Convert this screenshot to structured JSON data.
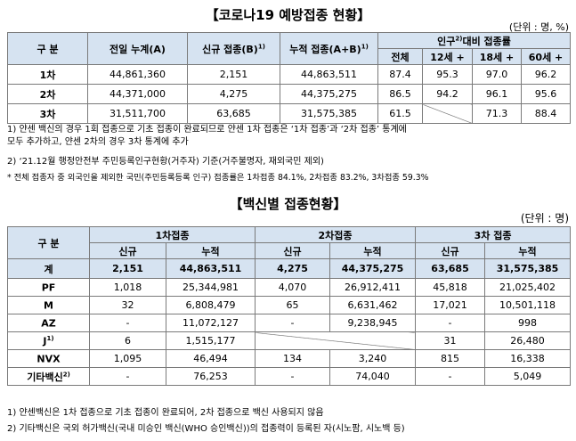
{
  "table1": {
    "title": "【코로나19 예방접종 현황】",
    "unit": "(단위 : 명, %)",
    "headers": {
      "category": "구 분",
      "prev": "전일 누계(A)",
      "new": "신규 접종(B)",
      "new_sup": "1)",
      "cum": "누적 접종(A+B)",
      "cum_sup": "1)",
      "pop_group": "인구",
      "pop_group_sup": "2)",
      "pop_group_tail": "대비 접종률",
      "total": "전체",
      "age12": "12세 +",
      "age18": "18세 +",
      "age60": "60세 +"
    },
    "rows": [
      {
        "label": "1차",
        "prev": "44,861,360",
        "new": "2,151",
        "cum": "44,863,511",
        "total": "87.4",
        "age12": "95.3",
        "age18": "97.0",
        "age60": "96.2"
      },
      {
        "label": "2차",
        "prev": "44,371,000",
        "new": "4,275",
        "cum": "44,375,275",
        "total": "86.5",
        "age12": "94.2",
        "age18": "96.1",
        "age60": "95.6"
      },
      {
        "label": "3차",
        "prev": "31,511,700",
        "new": "63,685",
        "cum": "31,575,385",
        "total": "61.5",
        "age12": "",
        "age18": "71.3",
        "age60": "88.4"
      }
    ],
    "notes": [
      "1) 얀센 백신의 경우 1회 접종으로 기초 접종이 완료되므로 얀센 1차 접종은 ‘1차 접종’과 ‘2차 접종’ 통계에",
      "    모두 추가하고, 얀센 2차의 경우 3차 통계에 추가",
      "2) ‘21.12월 행정안전부 주민등록인구현황(거주자) 기준(거주불명자, 재외국민 제외)",
      "  * 전체 접종자 중 외국인을 제외한 국민(주민등록등록 인구) 접종률은 1차접종 84.1%, 2차접종 83.2%, 3차접종 59.3%"
    ]
  },
  "table2": {
    "title": "【백신별 접종현황】",
    "unit": "(단위 : 명)",
    "headers": {
      "category": "구 분",
      "dose1": "1차접종",
      "dose2": "2차접종",
      "dose3": "3차 접종",
      "new": "신규",
      "cum": "누적"
    },
    "total_row": {
      "label": "계",
      "d1_new": "2,151",
      "d1_cum": "44,863,511",
      "d2_new": "4,275",
      "d2_cum": "44,375,275",
      "d3_new": "63,685",
      "d3_cum": "31,575,385"
    },
    "rows": [
      {
        "label": "PF",
        "sup": "",
        "d1_new": "1,018",
        "d1_cum": "25,344,981",
        "d2_new": "4,070",
        "d2_cum": "26,912,411",
        "d3_new": "45,818",
        "d3_cum": "21,025,402"
      },
      {
        "label": "M",
        "sup": "",
        "d1_new": "32",
        "d1_cum": "6,808,479",
        "d2_new": "65",
        "d2_cum": "6,631,462",
        "d3_new": "17,021",
        "d3_cum": "10,501,118"
      },
      {
        "label": "AZ",
        "sup": "",
        "d1_new": "-",
        "d1_cum": "11,072,127",
        "d2_new": "-",
        "d2_cum": "9,238,945",
        "d3_new": "-",
        "d3_cum": "998"
      },
      {
        "label": "J",
        "sup": "1)",
        "d1_new": "6",
        "d1_cum": "1,515,177",
        "d2_new": "",
        "d2_cum": "",
        "d3_new": "31",
        "d3_cum": "26,480"
      },
      {
        "label": "NVX",
        "sup": "",
        "d1_new": "1,095",
        "d1_cum": "46,494",
        "d2_new": "134",
        "d2_cum": "3,240",
        "d3_new": "815",
        "d3_cum": "16,338"
      },
      {
        "label": "기타백신",
        "sup": "2)",
        "d1_new": "-",
        "d1_cum": "76,253",
        "d2_new": "-",
        "d2_cum": "74,040",
        "d3_new": "-",
        "d3_cum": "5,049"
      }
    ],
    "notes": [
      "1) 얀센백신은 1차 접종으로 기초 접종이 완료되어, 2차 접종으로 백신 사용되지 않음",
      "2) 기타백신은 국외 허가백신(국내 미승인 백신(WHO 승인백신))의 접종력이 등록된 자(시노팜, 시노백 등)"
    ]
  }
}
